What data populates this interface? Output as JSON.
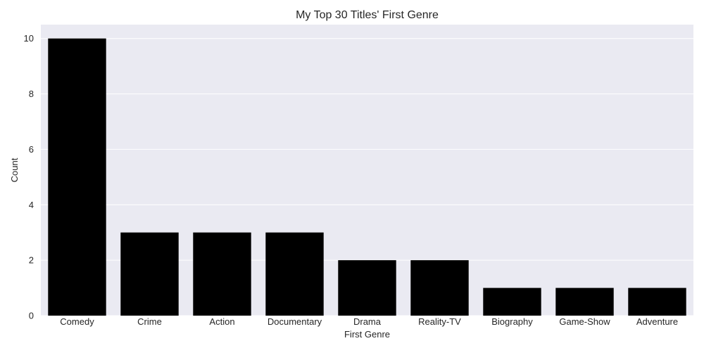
{
  "chart_data": {
    "type": "bar",
    "title": "My Top 30 Titles' First Genre",
    "xlabel": "First Genre",
    "ylabel": "Count",
    "categories": [
      "Comedy",
      "Crime",
      "Action",
      "Documentary",
      "Drama",
      "Reality-TV",
      "Biography",
      "Game-Show",
      "Adventure"
    ],
    "values": [
      10,
      3,
      3,
      3,
      2,
      2,
      1,
      1,
      1
    ],
    "ylim": [
      0,
      10.5
    ],
    "yticks": [
      0,
      2,
      4,
      6,
      8,
      10
    ],
    "grid": "horizontal",
    "legend": "none",
    "colors": {
      "bar": "#000000",
      "plot_background": "#eaeaf2",
      "grid": "#ffffff",
      "text": "#262626"
    }
  }
}
